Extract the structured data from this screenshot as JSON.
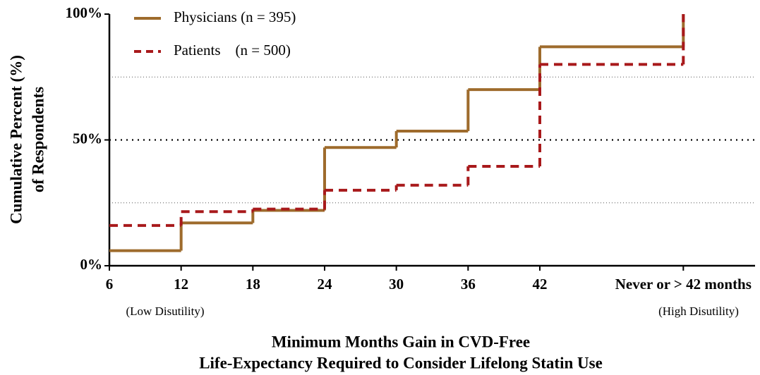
{
  "chart_data": {
    "type": "step",
    "x_label": [
      "Minimum Months Gain in CVD-Free",
      "Life-Expectancy Required to Consider Lifelong Statin Use"
    ],
    "y_label": [
      "Cumulative Percent (%)",
      "of Respondents"
    ],
    "annotations": [
      "(Low Disutility)",
      "(High Disutility)"
    ],
    "x": [
      6,
      12,
      18,
      24,
      30,
      36,
      42,
      54
    ],
    "series": [
      {
        "name": "Physicians (n = 395)",
        "color": "#9e6b2c",
        "dash": "solid",
        "values": [
          6,
          17,
          22,
          47,
          53.5,
          70,
          87,
          100
        ]
      },
      {
        "name": "Patients    (n = 500)",
        "color": "#a8191b",
        "dash": "dashed",
        "values": [
          16,
          21.5,
          22.5,
          30,
          32,
          39.5,
          80,
          100
        ]
      }
    ],
    "xlim": [
      6,
      60
    ],
    "xticks": [
      6,
      12,
      18,
      24,
      30,
      36,
      42,
      {
        "value": 54,
        "label": "Never or > 42 months"
      }
    ],
    "ylim": [
      0,
      100
    ],
    "yticks": [
      {
        "value": 0,
        "label": "0%"
      },
      {
        "value": 50,
        "label": "50%"
      },
      {
        "value": 100,
        "label": "100%"
      }
    ],
    "gridlines": [
      25,
      50,
      75
    ],
    "legend": "upper left"
  }
}
